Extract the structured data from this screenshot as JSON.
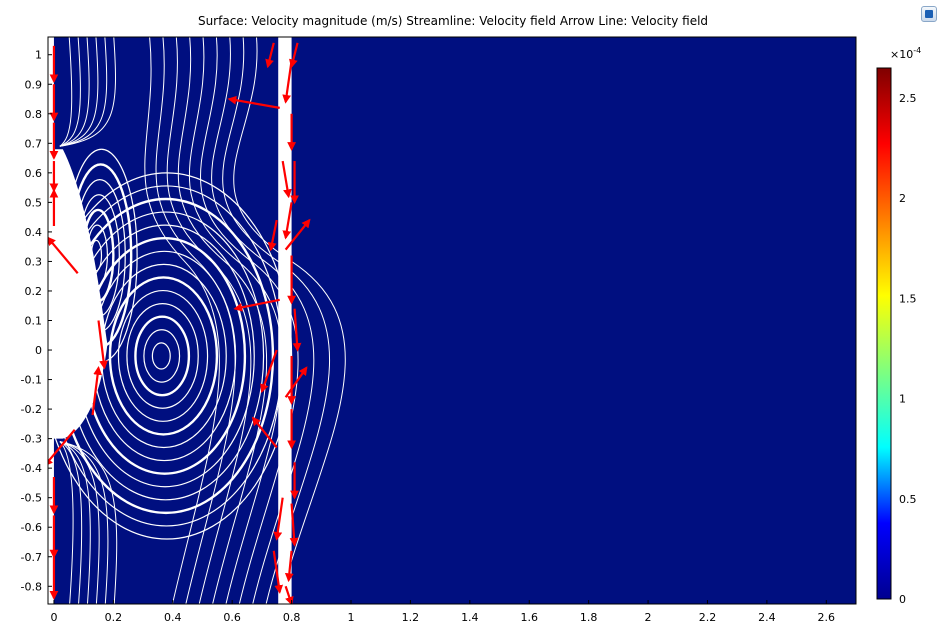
{
  "title": "Surface: Velocity magnitude (m/s)  Streamline: Velocity field  Arrow Line: Velocity field",
  "colors": {
    "background": "#000f80",
    "streamline": "#ffffff",
    "arrow": "#ff0000",
    "colormap": [
      "#00008f",
      "#0000ff",
      "#00ffff",
      "#7fff7f",
      "#ffff00",
      "#ff7f00",
      "#ff0000",
      "#7f0000"
    ]
  },
  "chart_data": {
    "type": "heatmap",
    "title": "Surface: Velocity magnitude (m/s)  Streamline: Velocity field  Arrow Line: Velocity field",
    "xlim": [
      -0.02,
      2.7
    ],
    "ylim": [
      -0.86,
      1.06
    ],
    "xticks": [
      0,
      0.2,
      0.4,
      0.6,
      0.8,
      1,
      1.2,
      1.4,
      1.6,
      1.8,
      2,
      2.2,
      2.4,
      2.6
    ],
    "yticks": [
      1,
      0.9,
      0.8,
      0.7,
      0.6,
      0.5,
      0.4,
      0.3,
      0.2,
      0.1,
      0,
      -0.1,
      -0.2,
      -0.3,
      -0.4,
      -0.5,
      -0.6,
      -0.7,
      -0.8
    ],
    "colorbar": {
      "range": [
        0,
        2.65
      ],
      "ticks": [
        0,
        0.5,
        1,
        1.5,
        2,
        2.5
      ],
      "exponent": "×10",
      "exponent_power": "-4"
    },
    "walls": [
      {
        "x0": -0.02,
        "x1": 0.0,
        "y0": -0.86,
        "y1": 1.06
      },
      {
        "x0": 0.755,
        "x1": 0.8,
        "y0": -0.86,
        "y1": 1.06
      }
    ],
    "openings": [
      {
        "x0": -0.02,
        "x1": 0.15,
        "y0": -0.3,
        "y1": 0.68
      }
    ],
    "vortices": [
      {
        "cx": 0.14,
        "cy": 0.32,
        "rx_max": 0.12,
        "ry_max": 0.36,
        "rings": 7
      },
      {
        "cx": 0.36,
        "cy": -0.02,
        "rx_max": 0.42,
        "ry_max": 0.62,
        "rings": 14
      }
    ],
    "arrows": [
      {
        "x": 0.0,
        "y": 1.03,
        "dx": 0.0,
        "dy": -0.12
      },
      {
        "x": 0.0,
        "y": 0.9,
        "dx": 0.0,
        "dy": -0.12
      },
      {
        "x": 0.0,
        "y": 0.77,
        "dx": 0.0,
        "dy": -0.12
      },
      {
        "x": 0.0,
        "y": 0.64,
        "dx": 0.0,
        "dy": -0.1
      },
      {
        "x": 0.0,
        "y": 0.42,
        "dx": 0.0,
        "dy": 0.12
      },
      {
        "x": 0.08,
        "y": 0.26,
        "dx": -0.1,
        "dy": 0.12
      },
      {
        "x": 0.15,
        "y": 0.1,
        "dx": 0.02,
        "dy": -0.16
      },
      {
        "x": 0.13,
        "y": -0.22,
        "dx": 0.02,
        "dy": 0.16
      },
      {
        "x": 0.07,
        "y": -0.27,
        "dx": -0.1,
        "dy": -0.12
      },
      {
        "x": 0.0,
        "y": -0.43,
        "dx": 0.0,
        "dy": -0.12
      },
      {
        "x": 0.0,
        "y": -0.56,
        "dx": 0.0,
        "dy": -0.14
      },
      {
        "x": 0.0,
        "y": -0.7,
        "dx": 0.0,
        "dy": -0.14
      },
      {
        "x": 0.74,
        "y": 1.04,
        "dx": -0.02,
        "dy": -0.08
      },
      {
        "x": 0.82,
        "y": 1.04,
        "dx": -0.02,
        "dy": -0.08
      },
      {
        "x": 0.76,
        "y": 0.82,
        "dx": -0.17,
        "dy": 0.03
      },
      {
        "x": 0.8,
        "y": 0.98,
        "dx": -0.02,
        "dy": -0.14
      },
      {
        "x": 0.8,
        "y": 0.8,
        "dx": 0.0,
        "dy": -0.12
      },
      {
        "x": 0.77,
        "y": 0.64,
        "dx": 0.02,
        "dy": -0.12
      },
      {
        "x": 0.81,
        "y": 0.64,
        "dx": 0.0,
        "dy": -0.14
      },
      {
        "x": 0.8,
        "y": 0.5,
        "dx": -0.02,
        "dy": -0.12
      },
      {
        "x": 0.75,
        "y": 0.44,
        "dx": -0.02,
        "dy": -0.1
      },
      {
        "x": 0.78,
        "y": 0.34,
        "dx": 0.08,
        "dy": 0.1
      },
      {
        "x": 0.76,
        "y": 0.17,
        "dx": -0.15,
        "dy": -0.03
      },
      {
        "x": 0.8,
        "y": 0.32,
        "dx": 0.0,
        "dy": -0.16
      },
      {
        "x": 0.81,
        "y": 0.14,
        "dx": 0.01,
        "dy": -0.14
      },
      {
        "x": 0.75,
        "y": 0.0,
        "dx": -0.05,
        "dy": -0.14
      },
      {
        "x": 0.8,
        "y": -0.02,
        "dx": 0.0,
        "dy": -0.16
      },
      {
        "x": 0.78,
        "y": -0.16,
        "dx": 0.07,
        "dy": 0.1
      },
      {
        "x": 0.75,
        "y": -0.33,
        "dx": -0.08,
        "dy": 0.1
      },
      {
        "x": 0.8,
        "y": -0.2,
        "dx": 0.0,
        "dy": -0.13
      },
      {
        "x": 0.81,
        "y": -0.38,
        "dx": 0.0,
        "dy": -0.12
      },
      {
        "x": 0.8,
        "y": -0.52,
        "dx": 0.01,
        "dy": -0.14
      },
      {
        "x": 0.77,
        "y": -0.5,
        "dx": -0.02,
        "dy": -0.14
      },
      {
        "x": 0.8,
        "y": -0.68,
        "dx": -0.01,
        "dy": -0.1
      },
      {
        "x": 0.74,
        "y": -0.68,
        "dx": 0.02,
        "dy": -0.14
      },
      {
        "x": 0.78,
        "y": -0.8,
        "dx": 0.02,
        "dy": -0.06
      }
    ]
  }
}
